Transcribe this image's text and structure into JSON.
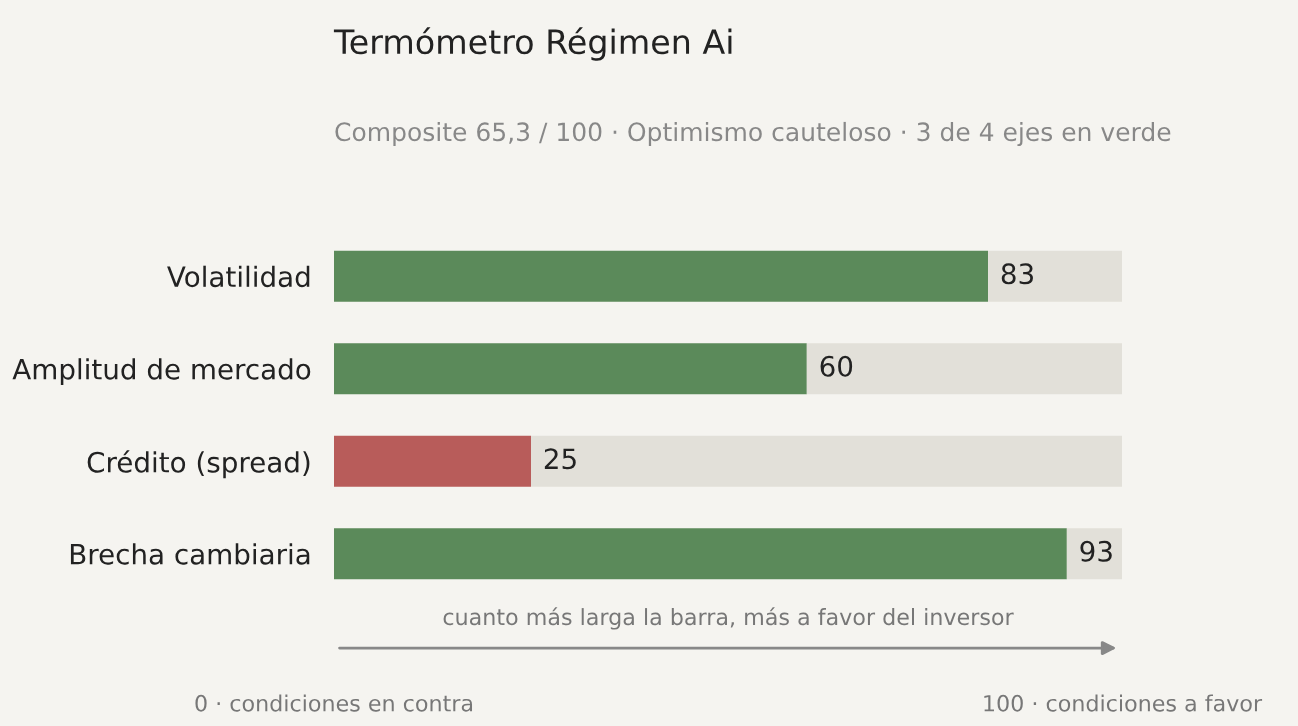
{
  "chart_data": {
    "type": "bar",
    "orientation": "horizontal",
    "stacked": true,
    "title": "Termómetro Régimen Ai",
    "subtitle": "Composite 65,3 / 100 · Optimismo cauteloso · 3 de 4 ejes en verde",
    "xlabel": "cuanto más larga la barra, más a favor del inversor",
    "categories": [
      "Volatilidad",
      "Amplitud de mercado",
      "Crédito (spread)",
      "Brecha cambiaria"
    ],
    "series": [
      {
        "colors": [
          "#5b8a5a",
          "#5b8a5a",
          "#b85c5a",
          "#5b8a5a"
        ],
        "values": [
          83,
          60,
          25,
          93
        ],
        "value_labels": [
          "83",
          "60",
          "25",
          "93"
        ]
      },
      {
        "color": "#e2e0d9",
        "values": [
          17,
          40,
          75,
          7
        ]
      }
    ],
    "xlim": [
      0,
      100
    ],
    "xticks": [
      {
        "value": 0,
        "label": "0 · condiciones en contra"
      },
      {
        "value": 100,
        "label": "100 · condiciones a favor"
      }
    ],
    "grid": false,
    "legend": false
  }
}
